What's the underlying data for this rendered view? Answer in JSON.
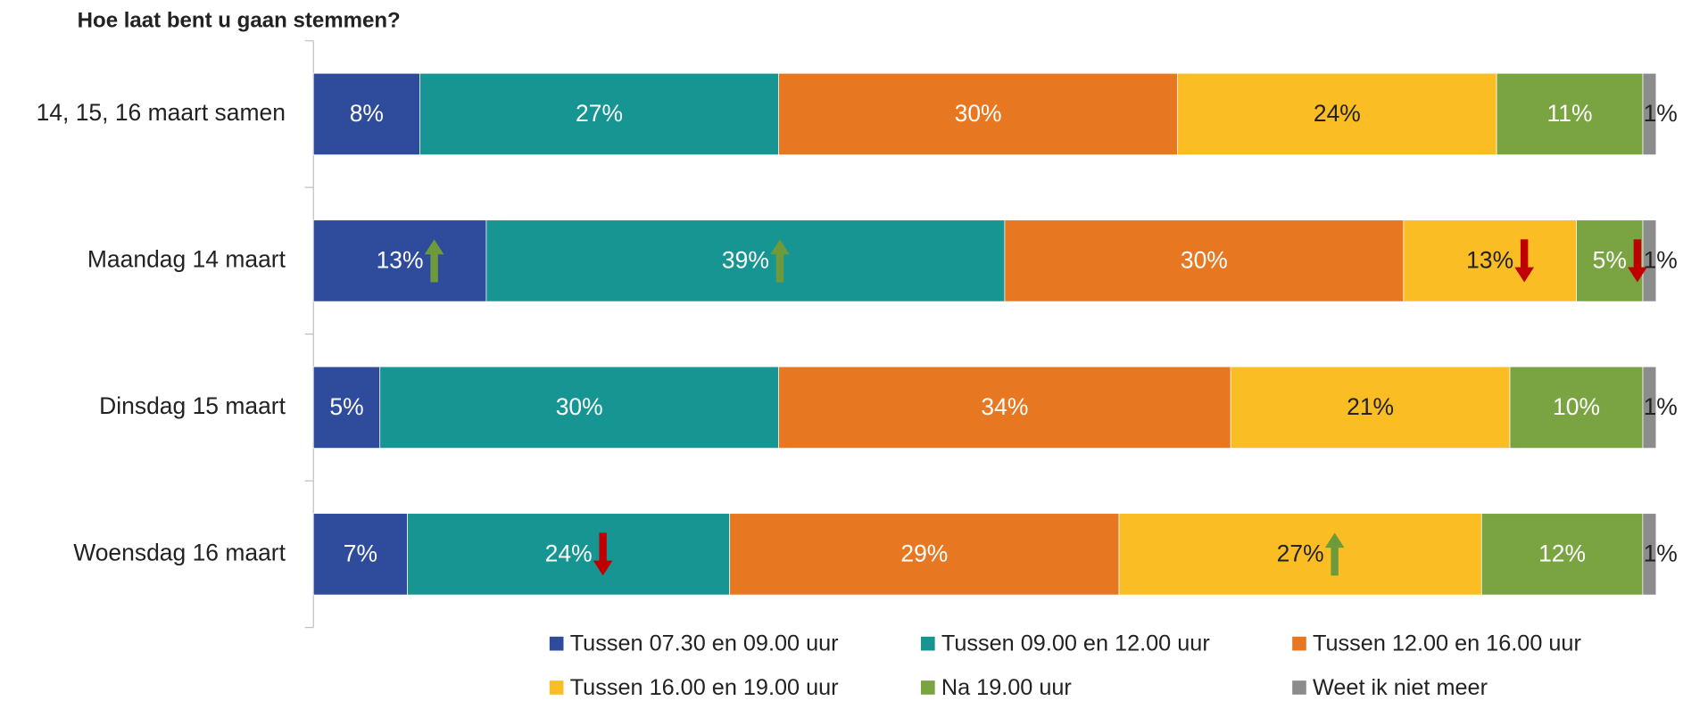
{
  "chart_data": {
    "type": "bar",
    "orientation": "horizontal",
    "stacked": true,
    "title": "Hoe laat bent u gaan stemmen?",
    "categories": [
      "14, 15, 16 maart samen",
      "Maandag 14 maart",
      "Dinsdag 15 maart",
      "Woensdag 16 maart"
    ],
    "series": [
      {
        "name": "Tussen 07.30 en 09.00 uur",
        "color": "#2f4b9b",
        "label_color": "#ffffff",
        "values": [
          8,
          13,
          5,
          7
        ],
        "value_labels": [
          "8%",
          "13%",
          "5%",
          "7%"
        ]
      },
      {
        "name": "Tussen 09.00 en 12.00 uur",
        "color": "#179593",
        "label_color": "#ffffff",
        "values": [
          27,
          39,
          30,
          24
        ],
        "value_labels": [
          "27%",
          "39%",
          "30%",
          "24%"
        ]
      },
      {
        "name": "Tussen 12.00 en 16.00 uur",
        "color": "#e87722",
        "label_color": "#ffffff",
        "values": [
          30,
          30,
          34,
          29
        ],
        "value_labels": [
          "30%",
          "30%",
          "34%",
          "29%"
        ]
      },
      {
        "name": "Tussen 16.00 en 19.00 uur",
        "color": "#fbbd24",
        "label_color": "#222222",
        "values": [
          24,
          13,
          21,
          27
        ],
        "value_labels": [
          "24%",
          "13%",
          "21%",
          "27%"
        ]
      },
      {
        "name": "Na 19.00 uur",
        "color": "#7aa342",
        "label_color": "#ffffff",
        "values": [
          11,
          5,
          10,
          12
        ],
        "value_labels": [
          "11%",
          "5%",
          "10%",
          "12%"
        ]
      },
      {
        "name": "Weet ik niet meer",
        "color": "#8c8c8c",
        "label_color": "#222222",
        "values": [
          1,
          1,
          1,
          1
        ],
        "value_labels": [
          "1%",
          "1%",
          "1%",
          "1%"
        ]
      }
    ],
    "arrows": [
      {
        "series": 0,
        "category": 1,
        "direction": "up",
        "color": "#6f9a3c"
      },
      {
        "series": 1,
        "category": 1,
        "direction": "up",
        "color": "#6f9a3c"
      },
      {
        "series": 3,
        "category": 1,
        "direction": "down",
        "color": "#c00000"
      },
      {
        "series": 4,
        "category": 1,
        "direction": "down",
        "color": "#c00000"
      },
      {
        "series": 1,
        "category": 3,
        "direction": "down",
        "color": "#c00000"
      },
      {
        "series": 3,
        "category": 3,
        "direction": "up",
        "color": "#6f9a3c"
      }
    ],
    "legend": "bottom"
  }
}
